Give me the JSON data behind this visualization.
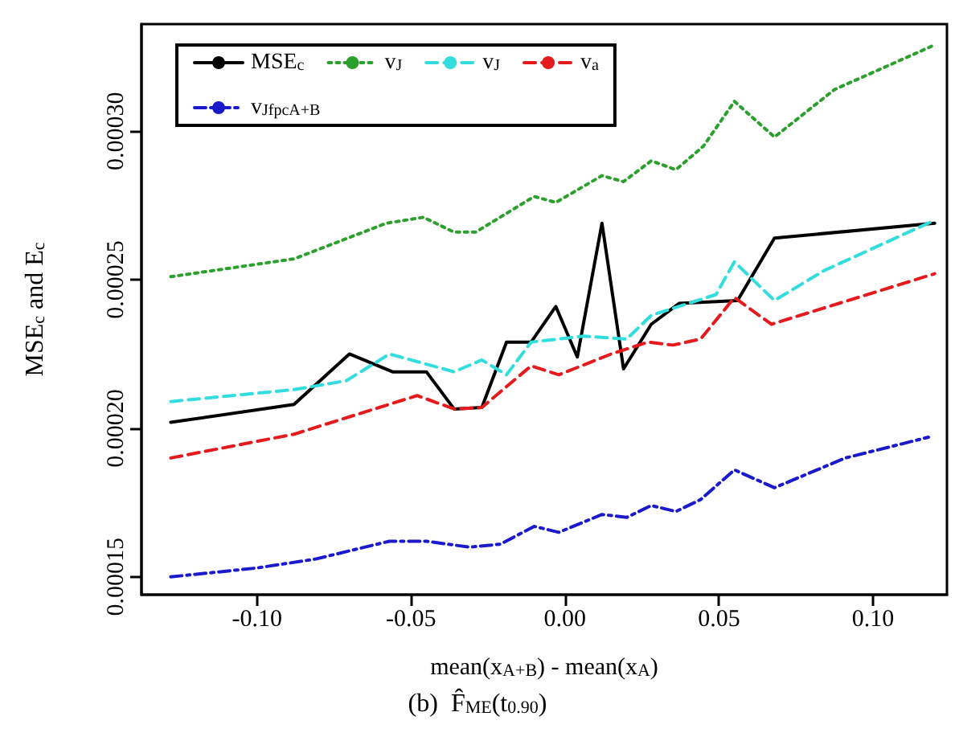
{
  "chart_data": {
    "type": "line",
    "xlabel": "mean(x$_{A+B}$) - mean(x$_{A}$)",
    "ylabel": "MSE$_{c}$ and E$_{c}$",
    "annotations": [
      "(b)  F̂$_{ME}$(t$_{0.90}$)"
    ],
    "xlim": [
      -0.1375,
      0.124
    ],
    "ylim": [
      0.000144,
      0.000336
    ],
    "xticks": [
      {
        "value": -0.1,
        "label": "-0.10"
      },
      {
        "value": -0.05,
        "label": "-0.05"
      },
      {
        "value": 0,
        "label": "0.00"
      },
      {
        "value": 0.05,
        "label": "0.05"
      },
      {
        "value": 0.1,
        "label": "0.10"
      }
    ],
    "yticks": [
      {
        "value": 0.00015,
        "label": "0.00015"
      },
      {
        "value": 0.0002,
        "label": "0.00020"
      },
      {
        "value": 0.00025,
        "label": "0.00025"
      },
      {
        "value": 0.0003,
        "label": "0.00030"
      }
    ],
    "grid": false,
    "legend": "top left",
    "marker": "none",
    "series": [
      {
        "name": "MSE$_{c}$",
        "color": "#000000",
        "line_style": "solid",
        "x": [
          -0.128,
          -0.088,
          -0.07,
          -0.056,
          -0.045,
          -0.036,
          -0.027,
          -0.019,
          -0.011,
          -0.003,
          0.004,
          0.012,
          0.019,
          0.028,
          0.037,
          0.056,
          0.068,
          0.12
        ],
        "values": [
          0.000202,
          0.000208,
          0.000225,
          0.000219,
          0.000219,
          0.0002065,
          0.000207,
          0.000229,
          0.000229,
          0.000241,
          0.000224,
          0.000269,
          0.00022,
          0.000235,
          0.000242,
          0.000243,
          0.000264,
          0.000269
        ]
      },
      {
        "name": "v$_{a}$",
        "color": "#e41a1c",
        "line_style": "dashed",
        "x": [
          -0.128,
          -0.088,
          -0.048,
          -0.036,
          -0.027,
          -0.011,
          -0.002,
          0.015,
          0.027,
          0.035,
          0.044,
          0.055,
          0.067,
          0.12
        ],
        "values": [
          0.00019,
          0.000198,
          0.000211,
          0.0002065,
          0.000207,
          0.000221,
          0.000218,
          0.000225,
          0.000229,
          0.000228,
          0.00023,
          0.000244,
          0.000235,
          0.000252
        ]
      },
      {
        "name": "v$_{J}$",
        "color": "#2ca02c",
        "line_style": "dotted",
        "x": [
          -0.128,
          -0.088,
          -0.058,
          -0.046,
          -0.036,
          -0.029,
          -0.01,
          -0.003,
          0.012,
          0.019,
          0.028,
          0.036,
          0.045,
          0.055,
          0.068,
          0.0875,
          0.12
        ],
        "values": [
          0.000251,
          0.000257,
          0.000269,
          0.000271,
          0.000266,
          0.000266,
          0.000278,
          0.000276,
          0.000285,
          0.000283,
          0.00029,
          0.000287,
          0.000295,
          0.00031,
          0.000298,
          0.000314,
          0.000329
        ]
      },
      {
        "name": "v$_{Jfpc}$$_{A+B}$",
        "color": "#1a1acc",
        "line_style": "dashdot",
        "x": [
          -0.128,
          -0.1,
          -0.081,
          -0.057,
          -0.045,
          -0.031,
          -0.021,
          -0.01,
          -0.002,
          0.012,
          0.02,
          0.028,
          0.036,
          0.044,
          0.055,
          0.068,
          0.091,
          0.118
        ],
        "values": [
          0.00015,
          0.000153,
          0.000156,
          0.000162,
          0.000162,
          0.00016,
          0.000161,
          0.000167,
          0.000165,
          0.000171,
          0.00017,
          0.000174,
          0.000172,
          0.000176,
          0.000186,
          0.00018,
          0.00019,
          0.000197
        ]
      },
      {
        "name": "v$_{J}$",
        "color": "#33dddd",
        "line_style": "dashed",
        "x": [
          -0.128,
          -0.088,
          -0.071,
          -0.057,
          -0.036,
          -0.027,
          -0.019,
          -0.011,
          0.006,
          0.02,
          0.028,
          0.049,
          0.055,
          0.068,
          0.084,
          0.12
        ],
        "values": [
          0.000209,
          0.000213,
          0.000216,
          0.000225,
          0.000219,
          0.000223,
          0.000218,
          0.000229,
          0.000231,
          0.00023,
          0.000238,
          0.000245,
          0.000256,
          0.000243,
          0.000253,
          0.00027
        ]
      }
    ]
  }
}
